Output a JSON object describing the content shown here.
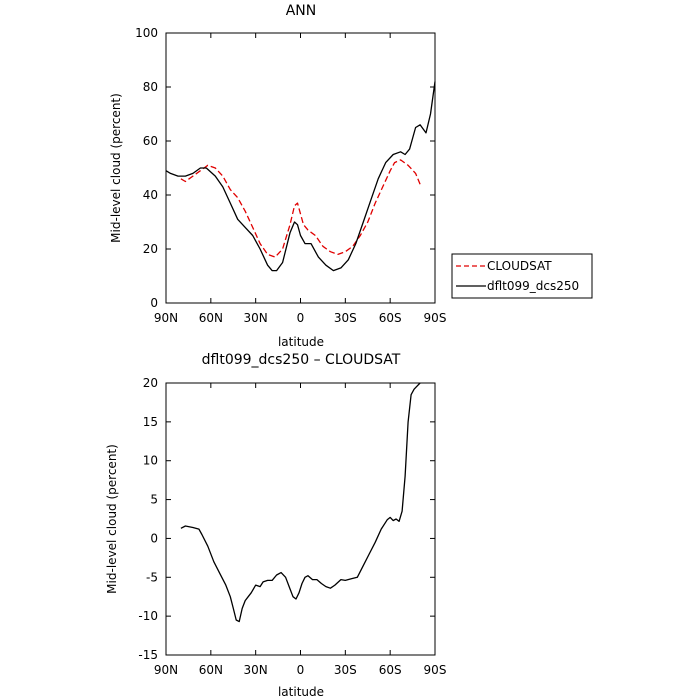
{
  "chart_data": [
    {
      "type": "line",
      "title": "ANN",
      "xlabel": "latitude",
      "ylabel": "Mid-level cloud (percent)",
      "xlim": [
        90,
        -90
      ],
      "ylim": [
        0,
        100
      ],
      "xticks": [
        {
          "value": 90,
          "label": "90N"
        },
        {
          "value": 60,
          "label": "60N"
        },
        {
          "value": 30,
          "label": "30N"
        },
        {
          "value": 0,
          "label": "0"
        },
        {
          "value": -30,
          "label": "30S"
        },
        {
          "value": -60,
          "label": "60S"
        },
        {
          "value": -90,
          "label": "90S"
        }
      ],
      "yticks": [
        0,
        20,
        40,
        60,
        80,
        100
      ],
      "grid": false,
      "legend": "right",
      "series": [
        {
          "name": "CLOUDSAT",
          "color": "#e00000",
          "dash": "dashed",
          "x": [
            80,
            77,
            72,
            67,
            62,
            57,
            52,
            47,
            42,
            37,
            32,
            27,
            22,
            17,
            12,
            7,
            4,
            2,
            0,
            -2,
            -5,
            -10,
            -15,
            -20,
            -25,
            -30,
            -35,
            -40,
            -45,
            -50,
            -55,
            -60,
            -63,
            -67,
            -72,
            -77,
            -80
          ],
          "y": [
            46,
            45,
            47,
            49,
            51,
            50,
            47,
            42,
            39,
            34,
            28,
            22,
            18,
            17,
            20,
            29,
            36,
            37,
            33,
            29,
            27,
            25,
            21,
            19,
            18,
            19,
            21,
            25,
            30,
            37,
            43,
            49,
            52,
            53,
            51,
            48,
            44
          ]
        },
        {
          "name": "dflt099_dcs250",
          "color": "#000000",
          "dash": "solid",
          "x": [
            90,
            87,
            82,
            77,
            72,
            67,
            63,
            57,
            52,
            47,
            42,
            37,
            32,
            27,
            22,
            19,
            16,
            12,
            7,
            4,
            2,
            0,
            -3,
            -7,
            -12,
            -17,
            -22,
            -27,
            -32,
            -37,
            -42,
            -47,
            -52,
            -57,
            -62,
            -67,
            -70,
            -73,
            -77,
            -80,
            -84,
            -87,
            -90
          ],
          "y": [
            49,
            48,
            47,
            47,
            48,
            50,
            50,
            47,
            43,
            37,
            31,
            28,
            25,
            20,
            14,
            12,
            12,
            15,
            26,
            30,
            29,
            25,
            22,
            22,
            17,
            14,
            12,
            13,
            16,
            22,
            30,
            38,
            46,
            52,
            55,
            56,
            55,
            57,
            65,
            66,
            63,
            70,
            82
          ]
        }
      ]
    },
    {
      "type": "line",
      "title": "dflt099_dcs250 – CLOUDSAT",
      "xlabel": "latitude",
      "ylabel": "Mid-level cloud (percent)",
      "xlim": [
        90,
        -90
      ],
      "ylim": [
        -15,
        20
      ],
      "xticks": [
        {
          "value": 90,
          "label": "90N"
        },
        {
          "value": 60,
          "label": "60N"
        },
        {
          "value": 30,
          "label": "30N"
        },
        {
          "value": 0,
          "label": "0"
        },
        {
          "value": -30,
          "label": "30S"
        },
        {
          "value": -60,
          "label": "60S"
        },
        {
          "value": -90,
          "label": "90S"
        }
      ],
      "yticks": [
        -15,
        -10,
        -5,
        0,
        5,
        10,
        15,
        20
      ],
      "grid": false,
      "series": [
        {
          "color": "#000000",
          "dash": "solid",
          "x": [
            80,
            77,
            72,
            68,
            66,
            62,
            58,
            54,
            50,
            47,
            45,
            43,
            41,
            39,
            37,
            35,
            33,
            30,
            27,
            25,
            22,
            19,
            16,
            13,
            10,
            7,
            5,
            3,
            1,
            -1,
            -3,
            -5,
            -8,
            -11,
            -14,
            -17,
            -20,
            -23,
            -27,
            -30,
            -34,
            -38,
            -42,
            -46,
            -50,
            -54,
            -58,
            -60,
            -62,
            -64,
            -66,
            -68,
            -70,
            -72,
            -74,
            -76,
            -78,
            -80
          ],
          "y": [
            1.3,
            1.6,
            1.4,
            1.2,
            0.5,
            -1,
            -3,
            -4.5,
            -6,
            -7.5,
            -9,
            -10.5,
            -10.7,
            -9,
            -8,
            -7.5,
            -7,
            -6,
            -6.2,
            -5.6,
            -5.4,
            -5.4,
            -4.7,
            -4.4,
            -5,
            -6.5,
            -7.5,
            -7.8,
            -7,
            -5.8,
            -5,
            -4.8,
            -5.3,
            -5.3,
            -5.8,
            -6.2,
            -6.4,
            -6,
            -5.3,
            -5.4,
            -5.2,
            -5,
            -3.5,
            -2,
            -0.5,
            1.2,
            2.4,
            2.7,
            2.3,
            2.5,
            2.2,
            3.5,
            8,
            15,
            18.5,
            19.2,
            19.6,
            20
          ]
        }
      ]
    }
  ]
}
